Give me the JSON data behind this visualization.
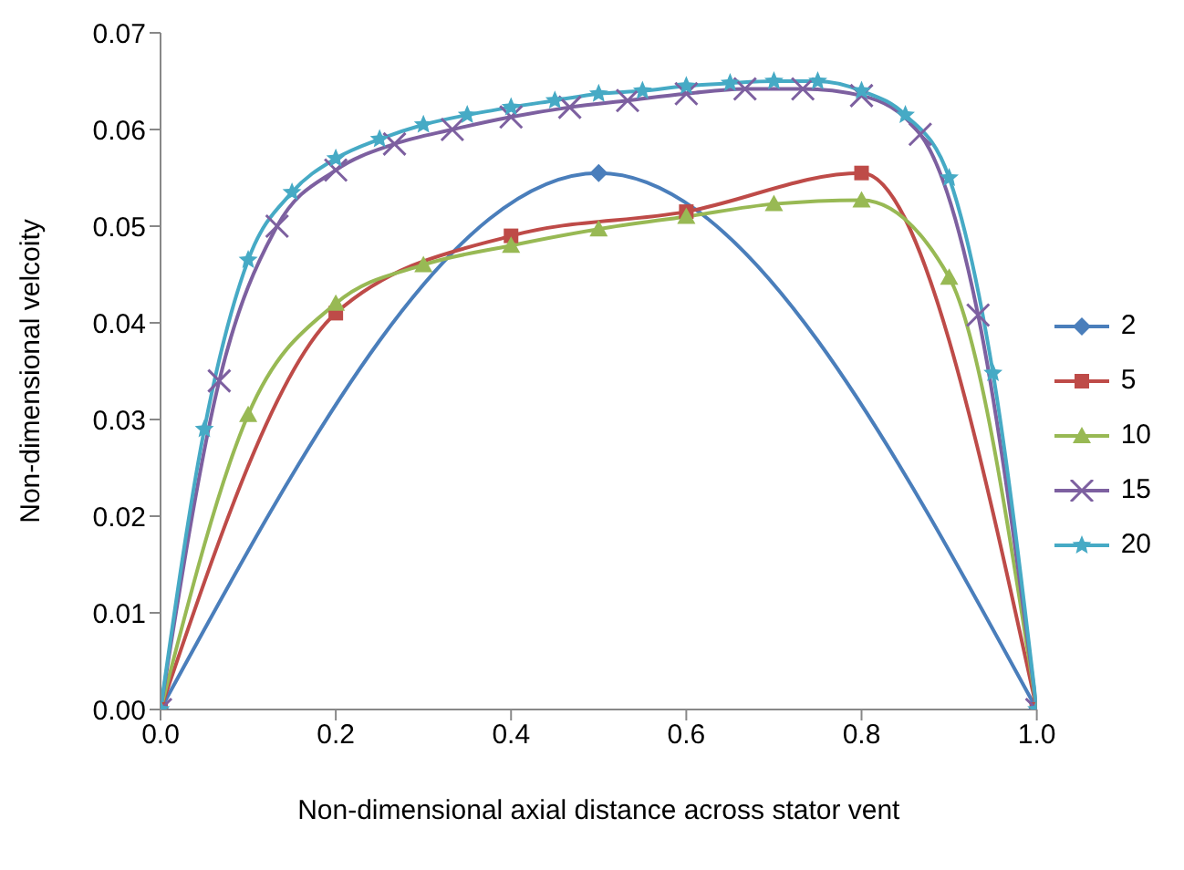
{
  "chart_data": {
    "type": "line",
    "xlabel": "Non-dimensional  axial distance across stator vent",
    "ylabel": "Non-dimensional  velcoity",
    "xlim": [
      0,
      1
    ],
    "xticks": [
      {
        "value": 0,
        "label": "0.0"
      },
      {
        "value": 0.2,
        "label": "0.2"
      },
      {
        "value": 0.4,
        "label": "0.4"
      },
      {
        "value": 0.6,
        "label": "0.6"
      },
      {
        "value": 0.8,
        "label": "0.8"
      },
      {
        "value": 1,
        "label": "1.0"
      }
    ],
    "ylim": [
      0,
      0.07
    ],
    "yticks": [
      {
        "value": 0,
        "label": "0.00"
      },
      {
        "value": 0.01,
        "label": "0.01"
      },
      {
        "value": 0.02,
        "label": "0.02"
      },
      {
        "value": 0.03,
        "label": "0.03"
      },
      {
        "value": 0.04,
        "label": "0.04"
      },
      {
        "value": 0.05,
        "label": "0.05"
      },
      {
        "value": 0.06,
        "label": "0.06"
      },
      {
        "value": 0.07,
        "label": "0.07"
      }
    ],
    "grid": false,
    "legend": "right",
    "line_style": "solid",
    "series": [
      {
        "name": "2",
        "color": "#4a7ebb",
        "marker": "diamond",
        "x": [
          0,
          0.5,
          1
        ],
        "values": [
          0,
          0.0555,
          0
        ]
      },
      {
        "name": "5",
        "color": "#be4b48",
        "marker": "square",
        "x": [
          0,
          0.2,
          0.4,
          0.6,
          0.8,
          1
        ],
        "values": [
          0,
          0.041,
          0.049,
          0.0515,
          0.0555,
          0
        ]
      },
      {
        "name": "10",
        "color": "#98b954",
        "marker": "triangle",
        "x": [
          0,
          0.1,
          0.2,
          0.3,
          0.4,
          0.5,
          0.6,
          0.7,
          0.8,
          0.9,
          1
        ],
        "values": [
          0,
          0.0305,
          0.042,
          0.046,
          0.048,
          0.0497,
          0.051,
          0.0523,
          0.0527,
          0.0447,
          0
        ]
      },
      {
        "name": "15",
        "color": "#7d60a0",
        "marker": "cross",
        "x": [
          0,
          0.067,
          0.133,
          0.2,
          0.267,
          0.333,
          0.4,
          0.467,
          0.533,
          0.6,
          0.667,
          0.733,
          0.8,
          0.867,
          0.933,
          1
        ],
        "values": [
          0,
          0.034,
          0.05,
          0.0558,
          0.0585,
          0.06,
          0.0613,
          0.0623,
          0.063,
          0.0637,
          0.0642,
          0.0642,
          0.0635,
          0.0595,
          0.0408,
          0
        ]
      },
      {
        "name": "20",
        "color": "#46aac5",
        "marker": "star",
        "x": [
          0,
          0.05,
          0.1,
          0.15,
          0.2,
          0.25,
          0.3,
          0.35,
          0.4,
          0.45,
          0.5,
          0.55,
          0.6,
          0.65,
          0.7,
          0.75,
          0.8,
          0.85,
          0.9,
          0.95,
          1
        ],
        "values": [
          0,
          0.029,
          0.0465,
          0.0535,
          0.057,
          0.059,
          0.0605,
          0.0615,
          0.0623,
          0.063,
          0.0637,
          0.064,
          0.0645,
          0.0648,
          0.065,
          0.065,
          0.064,
          0.0615,
          0.055,
          0.0348,
          0
        ]
      }
    ]
  }
}
